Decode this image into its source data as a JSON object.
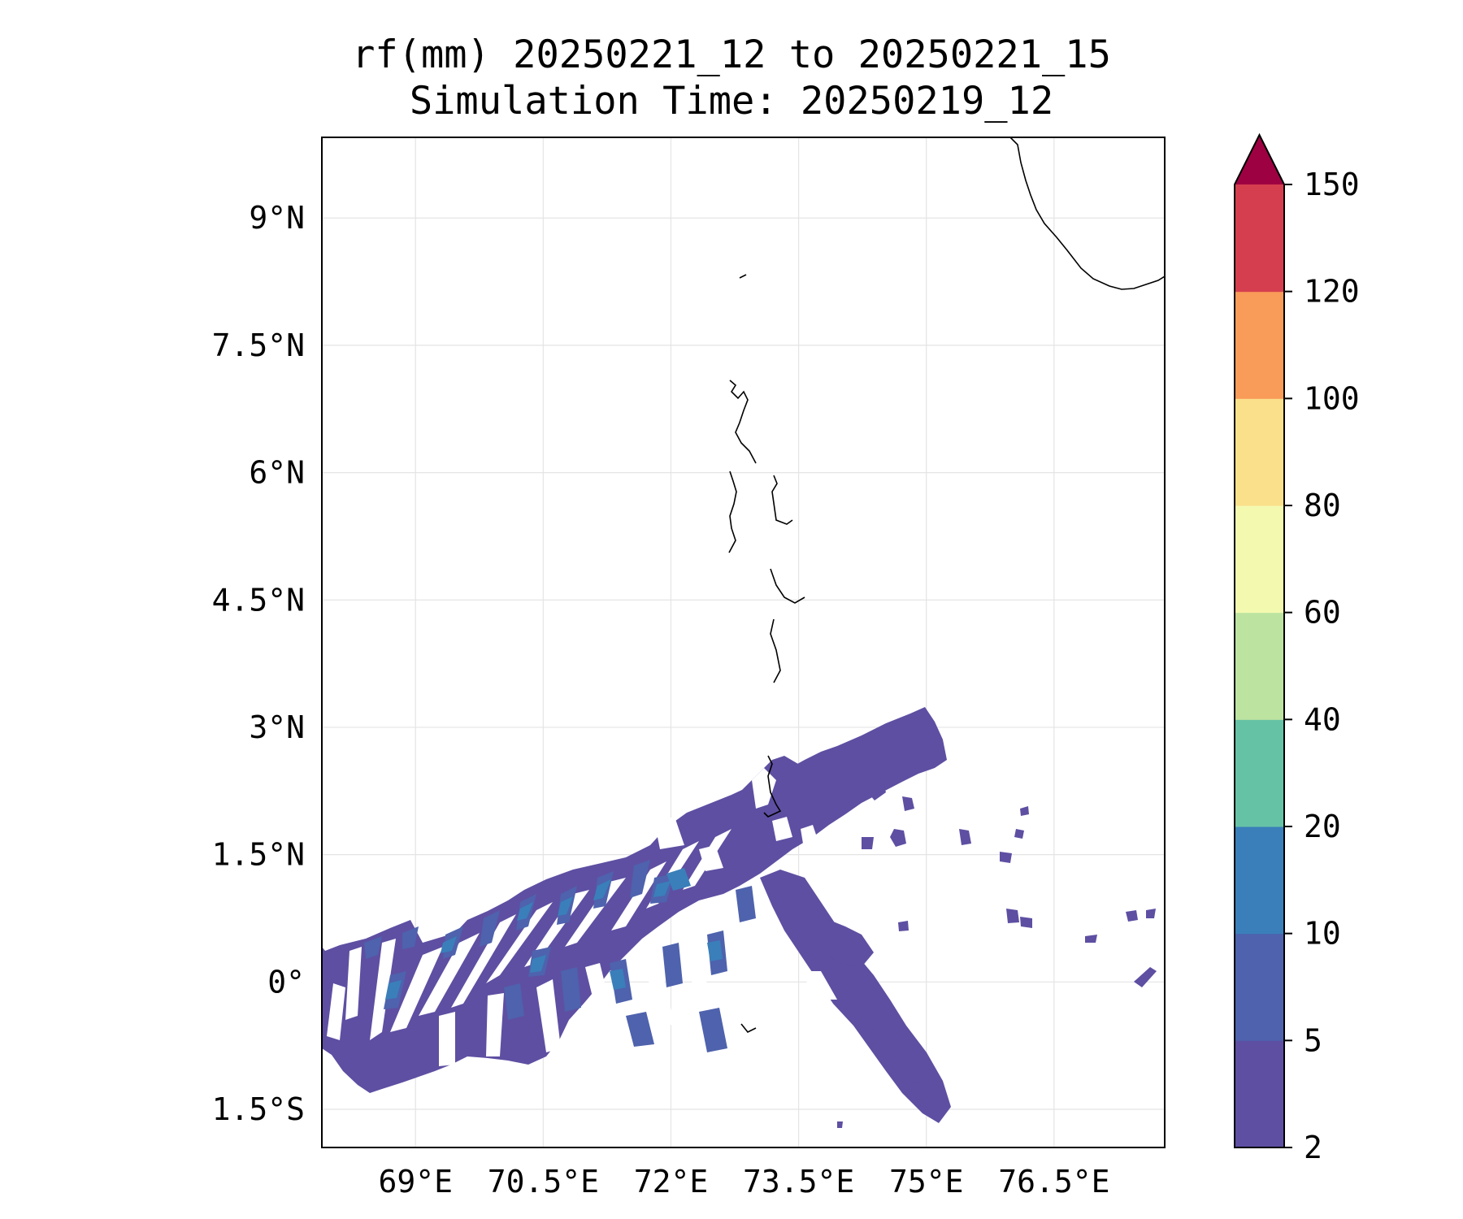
{
  "chart_data": {
    "type": "filled-contour-map",
    "title": "rf(mm) 20250221_12 to 20250221_15",
    "subtitle": "Simulation Time: 20250219_12",
    "variable": "rf(mm)",
    "xlim": [
      67.9,
      77.8
    ],
    "ylim": [
      -1.95,
      9.95
    ],
    "x_ticks": [
      69,
      70.5,
      72,
      73.5,
      75,
      76.5
    ],
    "x_tick_labels": [
      "69°E",
      "70.5°E",
      "72°E",
      "73.5°E",
      "75°E",
      "76.5°E"
    ],
    "y_ticks": [
      9,
      7.5,
      6,
      4.5,
      3,
      1.5,
      0,
      -1.5
    ],
    "y_tick_labels": [
      "9°N",
      "7.5°N",
      "6°N",
      "4.5°N",
      "3°N",
      "1.5°N",
      "0°",
      "1.5°S"
    ],
    "grid": true,
    "colorbar": {
      "levels": [
        2,
        5,
        10,
        20,
        40,
        60,
        80,
        100,
        120,
        150
      ],
      "tick_labels": [
        "2",
        "5",
        "10",
        "20",
        "40",
        "60",
        "80",
        "100",
        "120",
        "150"
      ],
      "colors": [
        "#5e4fa2",
        "#4e62ad",
        "#3a7fba",
        "#66c2a5",
        "#bde3a0",
        "#f3fab0",
        "#fbe08c",
        "#f99b59",
        "#d53e4f"
      ],
      "extend_color": "#9e0142",
      "extend": "max"
    },
    "rain_regions": [
      {
        "level": "2-5",
        "lon_range": [
          67.9,
          73.9
        ],
        "lat_range": [
          -1.3,
          2.6
        ],
        "description": "broad band south-west of Maldives"
      },
      {
        "level": "2-5",
        "lon_range": [
          73.5,
          75.6
        ],
        "lat_range": [
          -1.95,
          0.6
        ],
        "description": "band extending south-east"
      },
      {
        "level": "5-10",
        "lon_range": [
          68.2,
          72.8
        ],
        "lat_range": [
          -1.0,
          1.0
        ],
        "description": "embedded streaks"
      },
      {
        "level": "10-20",
        "lon_range": [
          69.5,
          72.3
        ],
        "lat_range": [
          -0.5,
          0.8
        ],
        "description": "isolated cores"
      }
    ]
  }
}
